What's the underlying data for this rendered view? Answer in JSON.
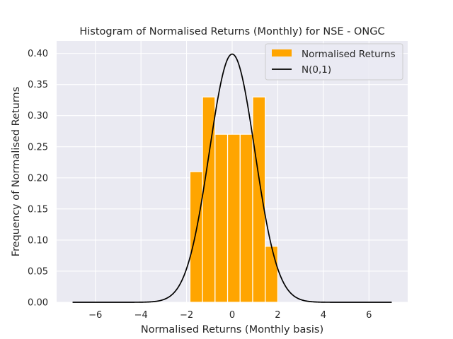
{
  "chart_data": {
    "type": "bar",
    "title": "Histogram of Normalised Returns (Monthly) for NSE - ONGC",
    "xlabel": "Normalised Returns (Monthly basis)",
    "ylabel": "Frequency of Normalised Returns",
    "xlim": [
      -7.7,
      7.7
    ],
    "ylim": [
      0,
      0.42
    ],
    "x_ticks": [
      -6,
      -4,
      -2,
      0,
      2,
      4,
      6
    ],
    "x_tick_labels": [
      "−6",
      "−4",
      "−2",
      "0",
      "2",
      "4",
      "6"
    ],
    "y_ticks": [
      0,
      0.05,
      0.1,
      0.15,
      0.2,
      0.25,
      0.3,
      0.35,
      0.4
    ],
    "y_tick_labels": [
      "0.00",
      "0.05",
      "0.10",
      "0.15",
      "0.20",
      "0.25",
      "0.30",
      "0.35",
      "0.40"
    ],
    "grid": true,
    "background": "#eaeaf2",
    "legend_position": "top-right",
    "histogram": {
      "name": "Normalised Returns",
      "color": "#ffa500",
      "bins": [
        {
          "x0": -1.85,
          "x1": -1.3,
          "value": 0.21
        },
        {
          "x0": -1.3,
          "x1": -0.75,
          "value": 0.33
        },
        {
          "x0": -0.75,
          "x1": -0.2,
          "value": 0.27
        },
        {
          "x0": -0.2,
          "x1": 0.35,
          "value": 0.27
        },
        {
          "x0": 0.35,
          "x1": 0.9,
          "value": 0.27
        },
        {
          "x0": 0.9,
          "x1": 1.45,
          "value": 0.33
        },
        {
          "x0": 1.45,
          "x1": 2.0,
          "value": 0.09
        }
      ]
    },
    "curve": {
      "name": "N(0,1)",
      "color": "#000000",
      "x_min": -7,
      "x_max": 7,
      "peak_value": 0.3989
    }
  }
}
